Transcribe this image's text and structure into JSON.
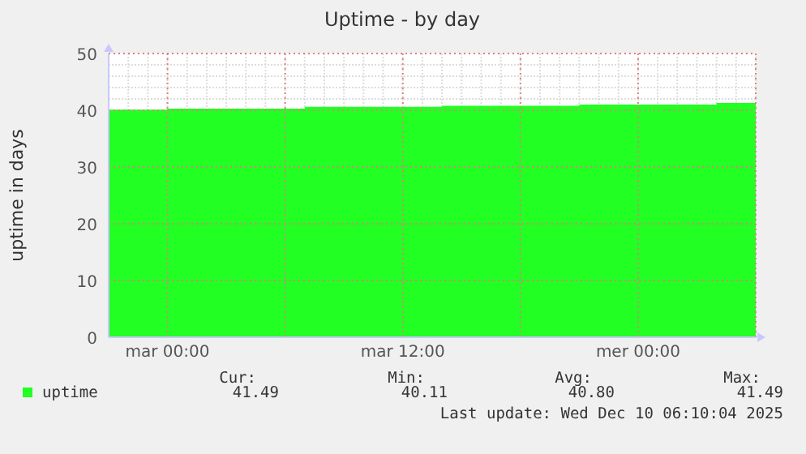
{
  "chart_data": {
    "type": "area",
    "title": "Uptime - by day",
    "ylabel": "uptime in days",
    "categories": [
      null,
      null,
      null,
      "mar 00:00",
      null,
      null,
      null,
      null,
      null,
      null,
      null,
      null,
      null,
      null,
      null,
      "mar 12:00",
      null,
      null,
      null,
      null,
      null,
      null,
      null,
      null,
      null,
      null,
      null,
      "mer 00:00",
      null,
      null,
      null,
      null,
      null,
      null
    ],
    "series": [
      {
        "name": "uptime",
        "color": "#22ff22",
        "values": [
          40.1,
          40.1,
          40.1,
          40.3,
          40.3,
          40.3,
          40.3,
          40.3,
          40.3,
          40.3,
          40.6,
          40.6,
          40.6,
          40.6,
          40.6,
          40.6,
          40.6,
          40.8,
          40.8,
          40.8,
          40.8,
          40.8,
          40.8,
          40.8,
          41.0,
          41.0,
          41.0,
          41.0,
          41.0,
          41.0,
          41.0,
          41.3,
          41.3,
          41.5
        ]
      }
    ],
    "ylim": [
      0,
      50
    ],
    "yticks": [
      0,
      10,
      20,
      30,
      40,
      50
    ],
    "grid": true,
    "legend": "bottom left",
    "annotations": [
      "Cur:",
      "41.49",
      "Min:",
      "40.11",
      "Avg:",
      "40.80",
      "Max:",
      "41.49",
      "Last update: Wed Dec 10 06:10:04 2025"
    ]
  }
}
